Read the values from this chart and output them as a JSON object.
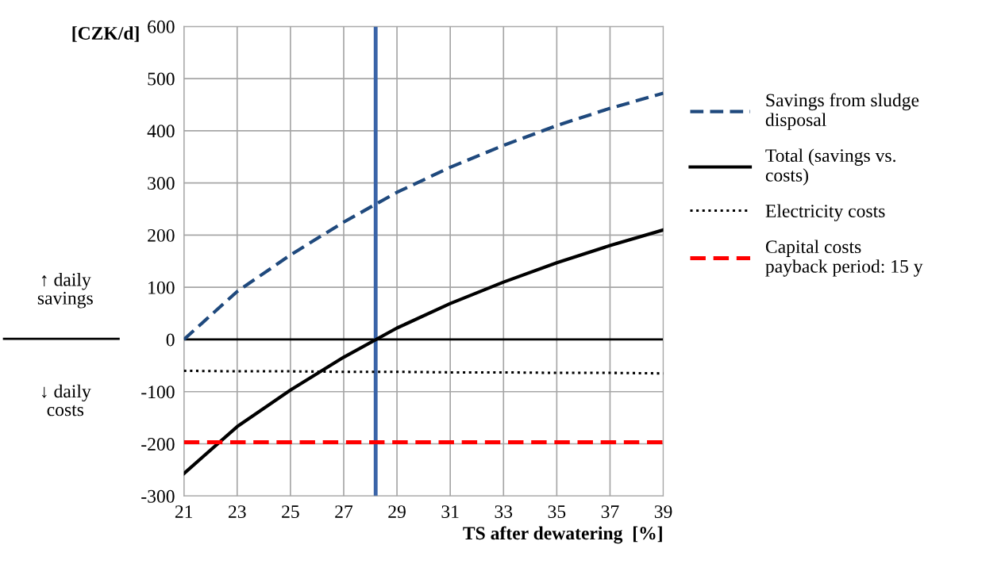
{
  "chart_data": {
    "type": "line",
    "xlabel": "TS after dewatering  [%]",
    "ylabel": "[CZK/d]",
    "x": [
      21,
      23,
      25,
      27,
      29,
      31,
      33,
      35,
      37,
      39
    ],
    "series": [
      {
        "name": "Savings from sludge\ndisposal",
        "color": "#1f497d",
        "line_style": "dashed",
        "values": [
          0,
          92,
          162,
          225,
          282,
          330,
          372,
          410,
          443,
          472
        ]
      },
      {
        "name": "Total (savings vs.\ncosts)",
        "color": "#000000",
        "line_style": "solid",
        "values": [
          -257,
          -167,
          -97,
          -34,
          22,
          69,
          110,
          147,
          180,
          210
        ]
      },
      {
        "name": "Electricity costs",
        "color": "#000000",
        "line_style": "dotted",
        "values": [
          -60,
          -61,
          -61,
          -62,
          -62,
          -63,
          -63,
          -64,
          -64,
          -65
        ]
      },
      {
        "name": "Capital costs\npayback period: 15 y",
        "color": "#ff0000",
        "line_style": "dashed",
        "values": [
          -197,
          -197,
          -197,
          -197,
          -197,
          -197,
          -197,
          -197,
          -197,
          -197
        ]
      }
    ],
    "xlim": [
      21,
      39
    ],
    "xticks": [
      21,
      23,
      25,
      27,
      29,
      31,
      33,
      35,
      37,
      39
    ],
    "ylim": [
      -300,
      600
    ],
    "yticks": [
      -300,
      -200,
      -100,
      0,
      100,
      200,
      300,
      400,
      500,
      600
    ],
    "ref_lines": [
      {
        "axis": "y",
        "value": 0,
        "color": "#000000",
        "line_style": "solid"
      },
      {
        "axis": "x",
        "value": 28.2,
        "color": "#3a64a8",
        "line_style": "solid"
      }
    ],
    "annotations": [
      "↑ daily\nsavings",
      "↓ daily\ncosts"
    ],
    "grid": true,
    "legend": "right",
    "marker": "none"
  }
}
